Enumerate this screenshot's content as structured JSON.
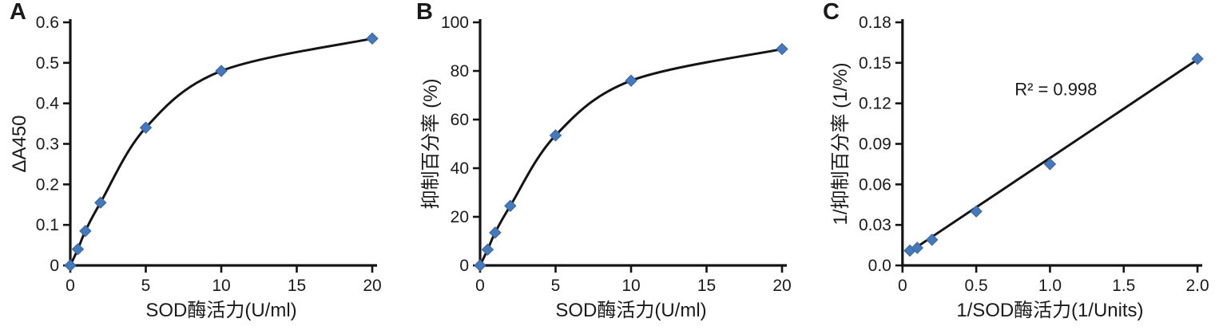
{
  "figure": {
    "background": "#ffffff",
    "marker_color": "#4579bd",
    "marker_edge_color": "#38639a",
    "line_color": "#141414",
    "text_color": "#1a1a1a"
  },
  "chart_data": [
    {
      "type": "line",
      "panel_label": "A",
      "smooth": true,
      "x": [
        0,
        0.5,
        1,
        2,
        5,
        10,
        20
      ],
      "y": [
        0,
        0.04,
        0.085,
        0.155,
        0.34,
        0.48,
        0.56
      ],
      "title": "",
      "xlabel": "SOD酶活力(U/ml)",
      "ylabel": "ΔA450",
      "xlim": [
        0,
        20
      ],
      "ylim": [
        0,
        0.6
      ],
      "xticks": [
        0,
        5,
        10,
        15,
        20
      ],
      "xtick_labels": [
        "0",
        "5",
        "10",
        "15",
        "20"
      ],
      "yticks": [
        0,
        0.1,
        0.2,
        0.3,
        0.4,
        0.5,
        0.6
      ],
      "ytick_labels": [
        "0",
        "0.1",
        "0.2",
        "0.3",
        "0.4",
        "0.5",
        "0.6"
      ],
      "marker": "diamond",
      "grid": false,
      "legend": null
    },
    {
      "type": "line",
      "panel_label": "B",
      "smooth": true,
      "x": [
        0,
        0.5,
        1,
        2,
        5,
        10,
        20
      ],
      "y": [
        0,
        6.5,
        13.5,
        24.5,
        53.5,
        76,
        89
      ],
      "title": "",
      "xlabel": "SOD酶活力(U/ml)",
      "ylabel": "抑制百分率 (%)",
      "xlim": [
        0,
        20
      ],
      "ylim": [
        0,
        100
      ],
      "xticks": [
        0,
        5,
        10,
        15,
        20
      ],
      "xtick_labels": [
        "0",
        "5",
        "10",
        "15",
        "20"
      ],
      "yticks": [
        0,
        20,
        40,
        60,
        80,
        100
      ],
      "ytick_labels": [
        "0",
        "20",
        "40",
        "60",
        "80",
        "100"
      ],
      "marker": "diamond",
      "grid": false,
      "legend": null
    },
    {
      "type": "scatter",
      "panel_label": "C",
      "smooth": false,
      "x": [
        0.05,
        0.1,
        0.2,
        0.5,
        1,
        2
      ],
      "y": [
        0.011,
        0.013,
        0.019,
        0.04,
        0.075,
        0.153
      ],
      "title": "",
      "xlabel": "1/SOD酶活力(1/Units)",
      "ylabel": "1/抑制百分率 (1/%)",
      "xlim": [
        0,
        2
      ],
      "ylim": [
        0,
        0.18
      ],
      "xticks": [
        0,
        0.5,
        1,
        1.5,
        2
      ],
      "xtick_labels": [
        "0",
        "0.5",
        "1.0",
        "1.5",
        "2.0"
      ],
      "yticks": [
        0,
        0.03,
        0.06,
        0.09,
        0.12,
        0.15,
        0.18
      ],
      "ytick_labels": [
        "0.0",
        "0.03",
        "0.06",
        "0.09",
        "0.12",
        "0.15",
        "0.18"
      ],
      "marker": "diamond",
      "grid": false,
      "legend": null,
      "trendline": {
        "x1": 0.04,
        "y1": 0.0095,
        "x2": 2.0,
        "y2": 0.1525
      },
      "annotation": {
        "text": "R² = 0.998",
        "fx": 0.52,
        "fy": 0.3
      }
    }
  ]
}
